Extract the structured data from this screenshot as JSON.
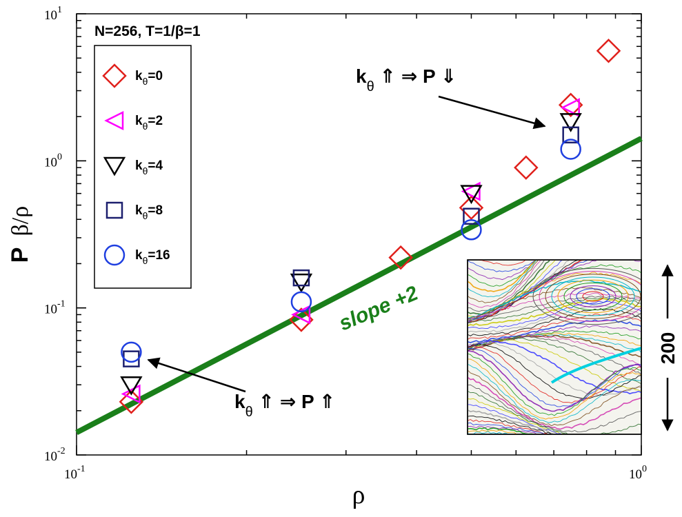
{
  "chart_data": {
    "type": "scatter",
    "title": "N=256, T=1/β=1",
    "xlabel": "ρ",
    "ylabel_main": "P",
    "ylabel_sub": "β/ρ",
    "xscale": "log",
    "yscale": "log",
    "xlim": [
      0.1,
      1.0
    ],
    "ylim": [
      0.01,
      10
    ],
    "x_ticks": [
      {
        "base": "10",
        "exp": "-1"
      },
      {
        "base": "10",
        "exp": "0"
      }
    ],
    "y_ticks": [
      {
        "base": "10",
        "exp": "-2"
      },
      {
        "base": "10",
        "exp": "-1"
      },
      {
        "base": "10",
        "exp": "0"
      },
      {
        "base": "10",
        "exp": "1"
      }
    ],
    "series": [
      {
        "name": "kθ=0",
        "label_main": "k",
        "label_sub": "θ",
        "label_rest": "=0",
        "marker": "diamond",
        "color": "#e0201b",
        "points": [
          [
            0.125,
            0.023
          ],
          [
            0.25,
            0.083
          ],
          [
            0.375,
            0.22
          ],
          [
            0.5,
            0.48
          ],
          [
            0.625,
            0.9
          ],
          [
            0.75,
            2.4
          ],
          [
            0.875,
            5.6
          ]
        ]
      },
      {
        "name": "kθ=2",
        "label_main": "k",
        "label_sub": "θ",
        "label_rest": "=2",
        "marker": "triangle-left",
        "color": "#ff00ff",
        "points": [
          [
            0.125,
            0.026
          ],
          [
            0.25,
            0.09
          ],
          [
            0.5,
            0.62
          ],
          [
            0.75,
            2.3
          ]
        ]
      },
      {
        "name": "kθ=4",
        "label_main": "k",
        "label_sub": "θ",
        "label_rest": "=4",
        "marker": "triangle-down",
        "color": "#000000",
        "points": [
          [
            0.125,
            0.03
          ],
          [
            0.25,
            0.15
          ],
          [
            0.5,
            0.6
          ],
          [
            0.75,
            1.85
          ]
        ]
      },
      {
        "name": "kθ=8",
        "label_main": "k",
        "label_sub": "θ",
        "label_rest": "=8",
        "marker": "square",
        "color": "#1c1f6e",
        "points": [
          [
            0.125,
            0.045
          ],
          [
            0.25,
            0.16
          ],
          [
            0.5,
            0.42
          ],
          [
            0.75,
            1.5
          ]
        ]
      },
      {
        "name": "kθ=16",
        "label_main": "k",
        "label_sub": "θ",
        "label_rest": "=16",
        "marker": "circle",
        "color": "#1f3fe0",
        "points": [
          [
            0.125,
            0.05
          ],
          [
            0.25,
            0.11
          ],
          [
            0.5,
            0.34
          ],
          [
            0.75,
            1.2
          ]
        ]
      }
    ],
    "fit_line": {
      "label": "slope +2",
      "color": "#1a7f1a",
      "x": [
        0.1,
        1.0
      ],
      "y": [
        0.0142,
        1.42
      ]
    },
    "annotations": {
      "upper": {
        "k": "k",
        "sub": "θ",
        "rest": " ⇑ ⇒ P ⇓"
      },
      "lower": {
        "k": "k",
        "sub": "θ",
        "rest": " ⇑ ⇒ P ⇑"
      }
    },
    "inset": {
      "scale_label": "200"
    }
  }
}
